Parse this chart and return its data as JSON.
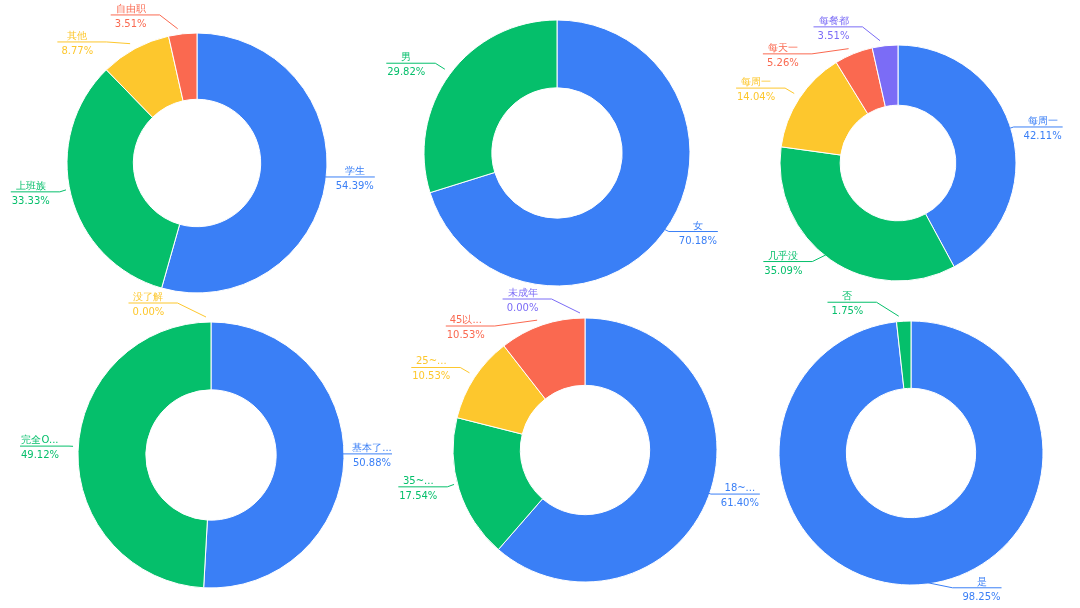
{
  "chart_data": [
    {
      "type": "donut",
      "categories": [
        "学生",
        "上班族",
        "其他",
        "自由职"
      ],
      "values": [
        54.39,
        33.33,
        8.77,
        3.51
      ],
      "colors": [
        "#3a7ff6",
        "#05bf6b",
        "#fdc72d",
        "#fa6950"
      ],
      "value_labels": [
        "54.39%",
        "33.33%",
        "8.77%",
        "3.51%"
      ]
    },
    {
      "type": "donut",
      "categories": [
        "女",
        "男"
      ],
      "values": [
        70.18,
        29.82
      ],
      "colors": [
        "#3a7ff6",
        "#05bf6b"
      ],
      "value_labels": [
        "70.18%",
        "29.82%"
      ]
    },
    {
      "type": "donut",
      "categories": [
        "每周一",
        "几乎没",
        "每周一",
        "每天一",
        "每餐都"
      ],
      "values": [
        42.11,
        35.09,
        14.04,
        5.26,
        3.51
      ],
      "colors": [
        "#3a7ff6",
        "#05bf6b",
        "#fdc72d",
        "#fa6950",
        "#7b6cf6"
      ],
      "value_labels": [
        "42.11%",
        "35.09%",
        "14.04%",
        "5.26%",
        "3.51%"
      ]
    },
    {
      "type": "donut",
      "categories": [
        "基本了...",
        "完全O...",
        "没了解"
      ],
      "values": [
        50.88,
        49.12,
        0
      ],
      "colors": [
        "#3a7ff6",
        "#05bf6b",
        "#fdc72d"
      ],
      "value_labels": [
        "50.88%",
        "49.12%",
        "0.00%"
      ]
    },
    {
      "type": "donut",
      "categories": [
        "18~...",
        "35~...",
        "25~...",
        "45以...",
        "未成年"
      ],
      "values": [
        61.4,
        17.54,
        10.53,
        10.53,
        0
      ],
      "colors": [
        "#3a7ff6",
        "#05bf6b",
        "#fdc72d",
        "#fa6950",
        "#7b6cf6"
      ],
      "value_labels": [
        "61.40%",
        "17.54%",
        "10.53%",
        "10.53%",
        "0.00%"
      ]
    },
    {
      "type": "donut",
      "categories": [
        "是",
        "否"
      ],
      "values": [
        98.25,
        1.75
      ],
      "colors": [
        "#3a7ff6",
        "#05bf6b"
      ],
      "value_labels": [
        "98.25%",
        "1.75%"
      ]
    }
  ]
}
